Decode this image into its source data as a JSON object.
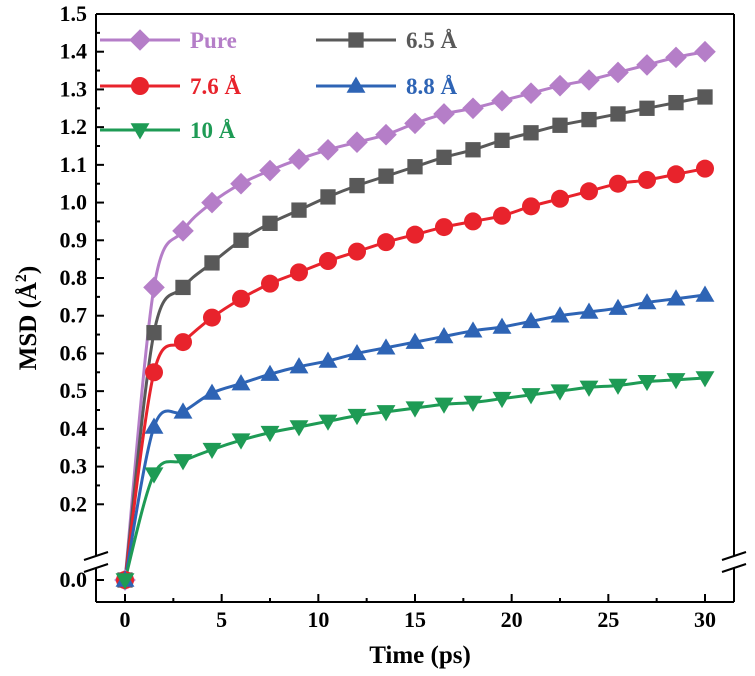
{
  "chart_data": {
    "type": "line",
    "xlabel": "Time (ps)",
    "ylabel_main": "MSD (Å",
    "ylabel_sup": "2",
    "ylabel_close": ")",
    "xlim": [
      -1.5,
      31.5
    ],
    "x_ticks": [
      0,
      5,
      10,
      15,
      20,
      25,
      30
    ],
    "x_tick_labels": [
      "0",
      "5",
      "10",
      "15",
      "20",
      "25",
      "30"
    ],
    "ylim_upper": [
      0.1,
      1.5
    ],
    "ylim_lower": [
      0.0,
      0.0
    ],
    "y_axis_break": true,
    "y_ticks": [
      0.2,
      0.3,
      0.4,
      0.5,
      0.6,
      0.7,
      0.8,
      0.9,
      1.0,
      1.1,
      1.2,
      1.3,
      1.4,
      1.5
    ],
    "y_tick_labels": [
      "0.2",
      "0.3",
      "0.4",
      "0.5",
      "0.6",
      "0.7",
      "0.8",
      "0.9",
      "1.0",
      "1.1",
      "1.2",
      "1.3",
      "1.4",
      "1.5"
    ],
    "y_zero_label": "0.0",
    "grid": false,
    "legend_position": "top-left",
    "x": [
      0,
      1.5,
      3,
      4.5,
      6,
      7.5,
      9,
      10.5,
      12,
      13.5,
      15,
      16.5,
      18,
      19.5,
      21,
      22.5,
      24,
      25.5,
      27,
      28.5,
      30
    ],
    "series": [
      {
        "name": "Pure",
        "color": "#b57ec8",
        "marker": "diamond",
        "values": [
          0.0,
          0.775,
          0.925,
          1.0,
          1.05,
          1.085,
          1.115,
          1.14,
          1.16,
          1.18,
          1.21,
          1.235,
          1.25,
          1.27,
          1.29,
          1.31,
          1.325,
          1.345,
          1.365,
          1.385,
          1.4
        ]
      },
      {
        "name": "6.5 Å",
        "color": "#595959",
        "marker": "square",
        "values": [
          0.0,
          0.655,
          0.775,
          0.84,
          0.9,
          0.945,
          0.98,
          1.015,
          1.045,
          1.07,
          1.095,
          1.12,
          1.14,
          1.165,
          1.185,
          1.205,
          1.22,
          1.235,
          1.25,
          1.265,
          1.28
        ]
      },
      {
        "name": "7.6 Å",
        "color": "#e8232c",
        "marker": "circle",
        "values": [
          0.0,
          0.55,
          0.63,
          0.695,
          0.745,
          0.785,
          0.815,
          0.845,
          0.87,
          0.895,
          0.915,
          0.935,
          0.95,
          0.965,
          0.99,
          1.01,
          1.03,
          1.05,
          1.06,
          1.075,
          1.09
        ]
      },
      {
        "name": "8.8 Å",
        "color": "#2e64b5",
        "marker": "triangle-up",
        "values": [
          0.0,
          0.405,
          0.445,
          0.495,
          0.52,
          0.545,
          0.565,
          0.58,
          0.6,
          0.615,
          0.63,
          0.645,
          0.66,
          0.67,
          0.685,
          0.7,
          0.71,
          0.72,
          0.735,
          0.745,
          0.755
        ]
      },
      {
        "name": "10 Å",
        "color": "#1e9b55",
        "marker": "triangle-down",
        "values": [
          0.0,
          0.28,
          0.315,
          0.345,
          0.37,
          0.39,
          0.405,
          0.42,
          0.435,
          0.445,
          0.455,
          0.465,
          0.47,
          0.48,
          0.49,
          0.5,
          0.51,
          0.515,
          0.525,
          0.53,
          0.535
        ]
      }
    ]
  }
}
